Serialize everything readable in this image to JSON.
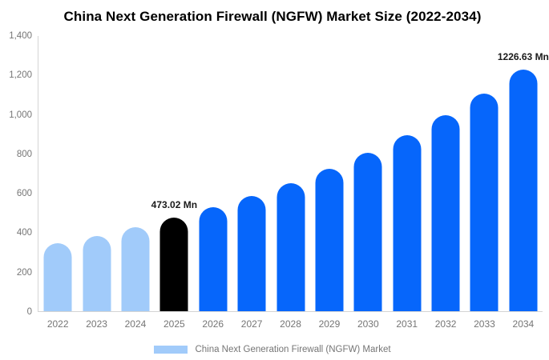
{
  "title": "China Next Generation Firewall (NGFW) Market Size (2022-2034)",
  "colors": {
    "historical_bar": "#a1cbfa",
    "base_year_bar": "#000000",
    "forecast_bar": "#0666fb",
    "axis_line": "#d4d4d4",
    "tick_text": "#757575",
    "value_label_text": "#1a1a1a",
    "title_text": "#000000"
  },
  "legend": {
    "label": "China Next Generation Firewall (NGFW) Market",
    "swatch_color": "#a1cbfa"
  },
  "chart_data": {
    "type": "bar",
    "title": "China Next Generation Firewall (NGFW) Market Size (2022-2034)",
    "xlabel": "",
    "ylabel": "",
    "unit": "Mn",
    "categories": [
      "2022",
      "2023",
      "2024",
      "2025",
      "2026",
      "2027",
      "2028",
      "2029",
      "2030",
      "2031",
      "2032",
      "2033",
      "2034"
    ],
    "series": [
      {
        "name": "China Next Generation Firewall (NGFW) Market",
        "values": [
          344.3,
          382.8,
          425.5,
          473.02,
          525.9,
          584.7,
          650.0,
          722.6,
          803.3,
          893.1,
          992.9,
          1103.8,
          1226.63
        ]
      }
    ],
    "bar_colors": [
      "#a1cbfa",
      "#a1cbfa",
      "#a1cbfa",
      "#000000",
      "#0666fb",
      "#0666fb",
      "#0666fb",
      "#0666fb",
      "#0666fb",
      "#0666fb",
      "#0666fb",
      "#0666fb",
      "#0666fb"
    ],
    "data_labels": [
      {
        "index": 3,
        "text": "473.02 Mn"
      },
      {
        "index": 12,
        "text": "1226.63 Mn"
      }
    ],
    "ylim": [
      0,
      1400
    ],
    "ytick_values": [
      0,
      200,
      400,
      600,
      800,
      1000,
      1200,
      1400
    ],
    "ytick_labels": [
      "0",
      "200",
      "400",
      "600",
      "800",
      "1,000",
      "1,200",
      "1,400"
    ],
    "grid": false,
    "legend_position": "bottom"
  }
}
